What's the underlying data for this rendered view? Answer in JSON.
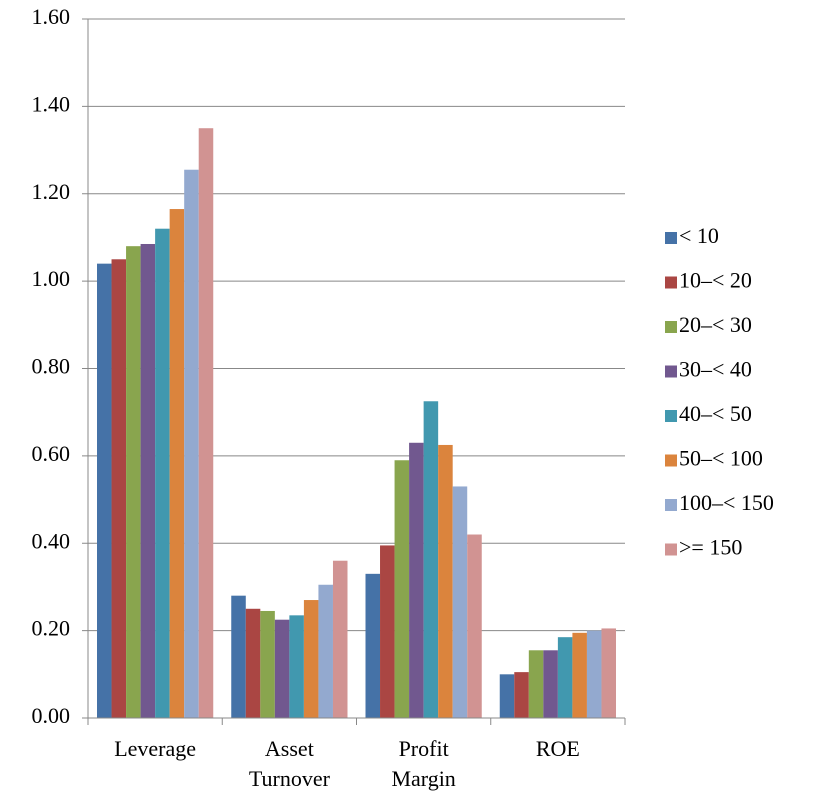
{
  "chart_data": {
    "type": "bar",
    "categories": [
      "Leverage",
      "Asset Turnover",
      "Profit Margin",
      "ROE"
    ],
    "series": [
      {
        "name": "< 10",
        "color": "#4572a7",
        "values": [
          1.04,
          0.28,
          0.33,
          0.1
        ]
      },
      {
        "name": "10–< 20",
        "color": "#aa4643",
        "values": [
          1.05,
          0.25,
          0.395,
          0.105
        ]
      },
      {
        "name": "20–< 30",
        "color": "#89a54e",
        "values": [
          1.08,
          0.245,
          0.59,
          0.155
        ]
      },
      {
        "name": "30–< 40",
        "color": "#71588f",
        "values": [
          1.085,
          0.225,
          0.63,
          0.155
        ]
      },
      {
        "name": "40–< 50",
        "color": "#4198af",
        "values": [
          1.12,
          0.235,
          0.725,
          0.185
        ]
      },
      {
        "name": "50–< 100",
        "color": "#db843d",
        "values": [
          1.165,
          0.27,
          0.625,
          0.195
        ]
      },
      {
        "name": "100–< 150",
        "color": "#93a9cf",
        "values": [
          1.255,
          0.305,
          0.53,
          0.2
        ]
      },
      {
        "name": ">= 150",
        "color": "#d19392",
        "values": [
          1.35,
          0.36,
          0.42,
          0.205
        ]
      }
    ],
    "ylim": [
      0,
      1.6
    ],
    "yticks": [
      {
        "value": 0,
        "label": "0.00"
      },
      {
        "value": 0.2,
        "label": "0.20"
      },
      {
        "value": 0.4,
        "label": "0.40"
      },
      {
        "value": 0.6,
        "label": "0.60"
      },
      {
        "value": 0.8,
        "label": "0.80"
      },
      {
        "value": 1.0,
        "label": "1.00"
      },
      {
        "value": 1.2,
        "label": "1.20"
      },
      {
        "value": 1.4,
        "label": "1.40"
      },
      {
        "value": 1.6,
        "label": "1.60"
      }
    ],
    "grid": true,
    "legend": "right"
  }
}
